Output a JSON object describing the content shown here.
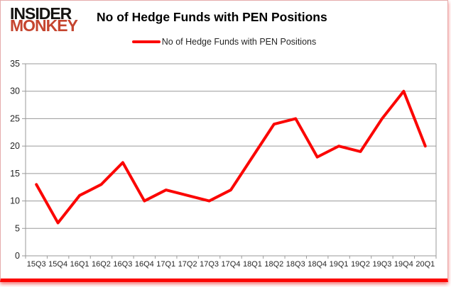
{
  "page": {
    "background": "#ffffff",
    "frame_border_color": "#e6abab",
    "bottom_bar_color": "#fb0603"
  },
  "logo": {
    "line1": "INSIDER",
    "line2": "MONKEY",
    "line1_color": "#161412",
    "line2_color": "#c5452f"
  },
  "header": {
    "title": "No of Hedge Funds with PEN Positions"
  },
  "legend": {
    "label": "No of Hedge Funds with PEN Positions",
    "swatch_color": "#fb0603"
  },
  "chart_data": {
    "type": "line",
    "title": "No of Hedge Funds with PEN Positions",
    "categories": [
      "15Q3",
      "15Q4",
      "16Q1",
      "16Q2",
      "16Q3",
      "16Q4",
      "17Q1",
      "17Q2",
      "17Q3",
      "17Q4",
      "18Q1",
      "18Q2",
      "18Q3",
      "18Q4",
      "19Q1",
      "19Q2",
      "19Q3",
      "19Q4",
      "20Q1"
    ],
    "series": [
      {
        "name": "No of Hedge Funds with PEN Positions",
        "color": "#fb0603",
        "values": [
          13,
          6,
          11,
          13,
          17,
          10,
          12,
          11,
          10,
          12,
          18,
          24,
          25,
          18,
          20,
          19,
          25,
          30,
          20
        ]
      }
    ],
    "xlabel": "",
    "ylabel": "",
    "ylim": [
      0,
      35
    ],
    "ytick_step": 5,
    "grid": "horizontal",
    "grid_color": "#9a9a9a",
    "tick_label_color": "#262626",
    "legend_position": "top"
  }
}
